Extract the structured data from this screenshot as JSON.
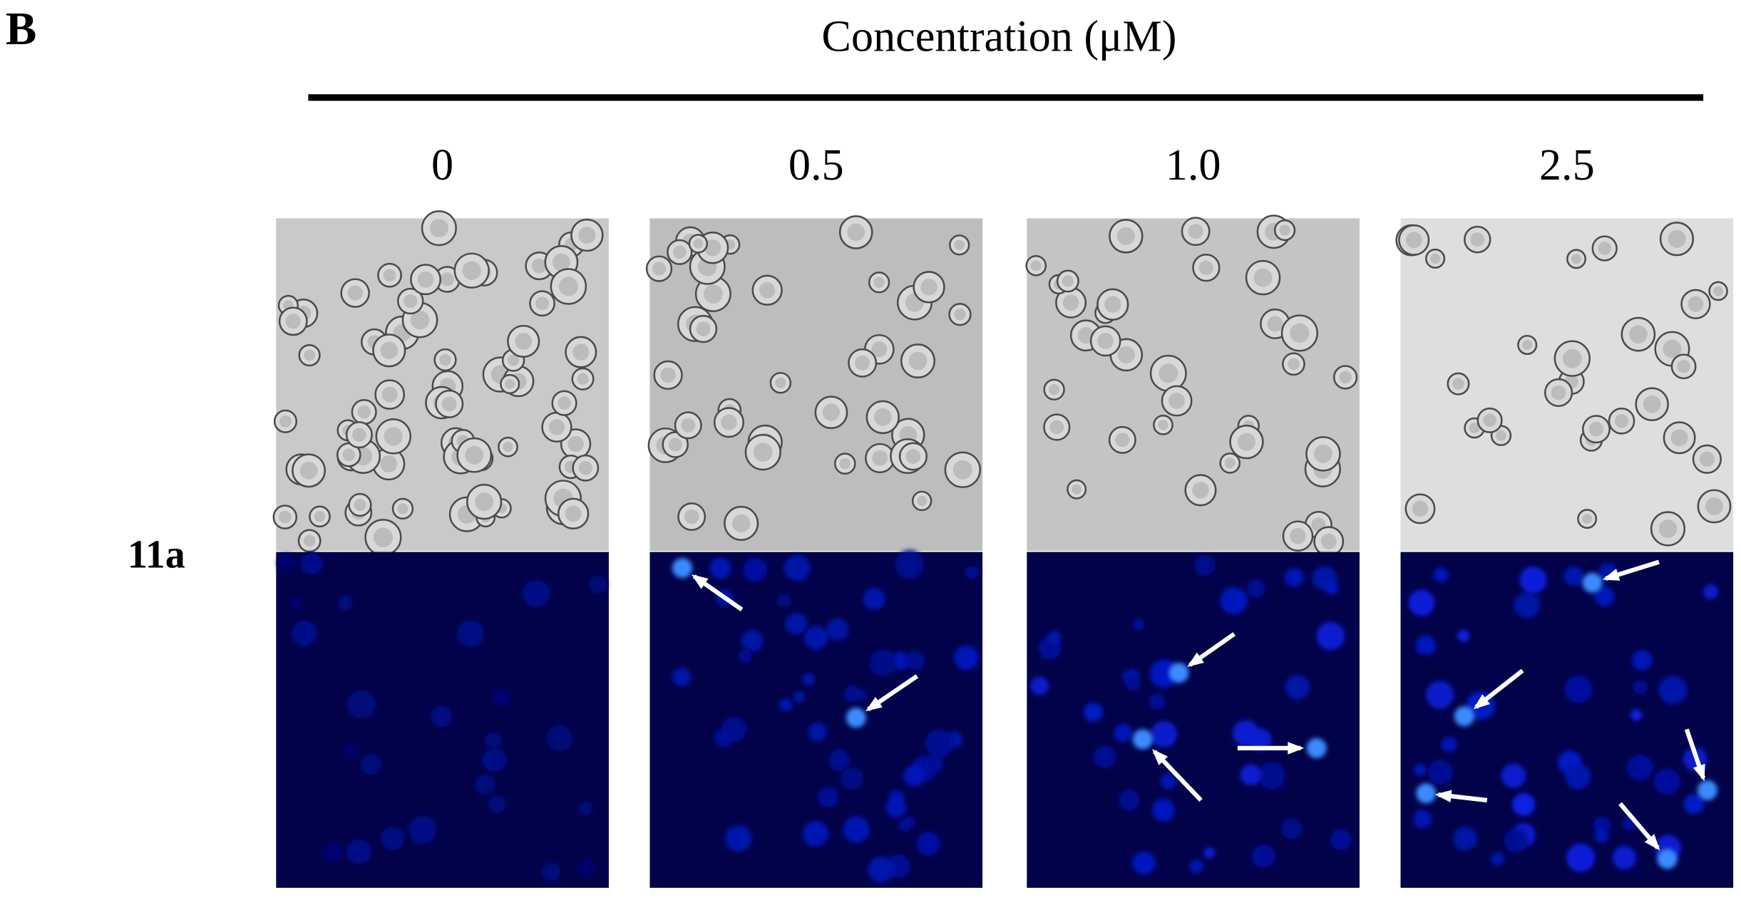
{
  "panel_label": "B",
  "header": {
    "title": "Concentration (μM)"
  },
  "columns": [
    "0",
    "0.5",
    "1.0",
    "2.5"
  ],
  "rows": [
    {
      "label": "11a"
    }
  ]
}
